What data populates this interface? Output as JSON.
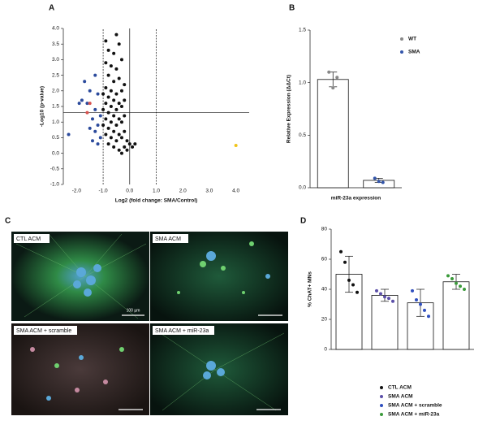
{
  "chart_data": [
    {
      "type": "scatter",
      "panel": "A",
      "x_label": "Log2 (fold change: SMA/Control)",
      "y_label": "-Log10 (p-value)",
      "xlim": [
        -2.5,
        4.5
      ],
      "ylim": [
        -1.0,
        4.0
      ],
      "xticks": [
        {
          "value": -2,
          "label": "-2.0"
        },
        {
          "value": -1,
          "label": "-1.0"
        },
        {
          "value": 0,
          "label": "0.0"
        },
        {
          "value": 1,
          "label": "1.0"
        },
        {
          "value": 2,
          "label": "2.0"
        },
        {
          "value": 3,
          "label": "3.0"
        },
        {
          "value": 4,
          "label": "4.0"
        }
      ],
      "yticks": [
        {
          "value": -1,
          "label": "-1.0"
        },
        {
          "value": -0.5,
          "label": "-0.5"
        },
        {
          "value": 0,
          "label": "0.0"
        },
        {
          "value": 0.5,
          "label": "0.5"
        },
        {
          "value": 1,
          "label": "1.0"
        },
        {
          "value": 1.5,
          "label": "1.5"
        },
        {
          "value": 2,
          "label": "2.0"
        },
        {
          "value": 2.5,
          "label": "2.5"
        },
        {
          "value": 3,
          "label": "3.0"
        },
        {
          "value": 3.5,
          "label": "3.5"
        },
        {
          "value": 4,
          "label": "4.0"
        }
      ],
      "ref_lines": [
        {
          "axis": "x",
          "value": -1,
          "style": "dashed"
        },
        {
          "axis": "x",
          "value": 0,
          "style": "solid"
        },
        {
          "axis": "x",
          "value": 1,
          "style": "dashed"
        },
        {
          "axis": "y",
          "value": 1.3,
          "style": "solid"
        }
      ],
      "series": [
        {
          "color": "#111111",
          "x": [
            -0.5,
            -0.9,
            -0.4,
            -0.8,
            -0.6,
            -0.3,
            -0.9,
            -0.7,
            -0.5,
            -0.8,
            -0.4,
            -0.6,
            -0.2,
            -0.9,
            -0.7,
            -0.3,
            -1.0,
            -0.5,
            -0.8,
            -0.6,
            -0.2,
            -0.9,
            -0.4,
            -0.7,
            -0.3,
            -1.0,
            -0.5,
            -0.8,
            -0.6,
            -0.2,
            -0.9,
            -0.4,
            -0.7,
            -0.3,
            -1.0,
            -0.5,
            -0.8,
            -0.6,
            -0.2,
            -0.9,
            -0.4,
            -0.7,
            -0.3,
            -0.1,
            -0.5,
            0.0,
            -0.8,
            -0.6,
            -0.2,
            0.2,
            -0.4,
            -0.1,
            0.1,
            -0.3
          ],
          "y": [
            3.8,
            3.6,
            3.5,
            3.3,
            3.2,
            3.0,
            2.9,
            2.8,
            2.7,
            2.5,
            2.4,
            2.3,
            2.2,
            2.1,
            2.0,
            2.0,
            1.9,
            1.9,
            1.8,
            1.7,
            1.7,
            1.6,
            1.6,
            1.5,
            1.5,
            1.4,
            1.4,
            1.3,
            1.2,
            1.2,
            1.1,
            1.1,
            1.0,
            1.0,
            0.9,
            0.9,
            0.8,
            0.7,
            0.7,
            0.6,
            0.6,
            0.5,
            0.5,
            0.4,
            0.4,
            0.3,
            0.3,
            0.2,
            0.2,
            0.3,
            0.1,
            0.1,
            0.2,
            0.0
          ]
        },
        {
          "color": "#2b4a9c",
          "x": [
            -1.7,
            -1.3,
            -1.5,
            -1.2,
            -1.8,
            -1.6,
            -1.3,
            -1.1,
            -1.4,
            -1.2,
            -1.5,
            -1.3,
            -2.3,
            -1.1,
            -1.4,
            -1.2,
            -1.9
          ],
          "y": [
            2.3,
            2.5,
            2.0,
            1.9,
            1.7,
            1.6,
            1.4,
            1.2,
            1.1,
            0.9,
            0.8,
            0.7,
            0.6,
            0.5,
            0.4,
            0.3,
            1.6
          ]
        },
        {
          "color": "#d9534f",
          "x": [
            -1.5,
            -1.6
          ],
          "y": [
            1.6,
            1.3
          ]
        },
        {
          "color": "#f0c419",
          "x": [
            4.0
          ],
          "y": [
            0.25
          ]
        }
      ]
    },
    {
      "type": "bar",
      "panel": "B",
      "x_label": "miR-23a expression",
      "y_label": "Relative Expression (ΔΔCt)",
      "categories": [
        null
      ],
      "ylim": [
        0,
        1.5
      ],
      "yticks": [
        {
          "value": 0,
          "label": "0.0"
        },
        {
          "value": 0.5,
          "label": "0.5"
        },
        {
          "value": 1,
          "label": "1.0"
        },
        {
          "value": 1.5,
          "label": "1.5"
        }
      ],
      "series": [
        {
          "name": "WT",
          "color": "#888888",
          "values": [
            1.03
          ],
          "errors": [
            0.07
          ],
          "points": [
            1.1,
            0.95,
            1.05
          ]
        },
        {
          "name": "SMA",
          "color": "#3355aa",
          "values": [
            0.07
          ],
          "errors": [
            0.02
          ],
          "points": [
            0.09,
            0.06,
            0.05
          ]
        }
      ]
    },
    {
      "type": "bar",
      "panel": "D",
      "y_label": "% ChAT+ MNs",
      "categories": [
        null
      ],
      "ylim": [
        0,
        80
      ],
      "yticks": [
        0,
        20,
        40,
        60,
        80
      ],
      "series": [
        {
          "name": "CTL ACM",
          "color": "#111111",
          "values": [
            50
          ],
          "errors": [
            12
          ],
          "points": [
            65,
            58,
            46,
            43,
            38
          ]
        },
        {
          "name": "SMA ACM",
          "color": "#5b4fa8",
          "values": [
            36
          ],
          "errors": [
            4
          ],
          "points": [
            39,
            37,
            35,
            34,
            32
          ]
        },
        {
          "name": "SMA ACM + scramble",
          "color": "#2f4fbf",
          "values": [
            31
          ],
          "errors": [
            9
          ],
          "points": [
            39,
            33,
            30,
            26,
            22
          ]
        },
        {
          "name": "SMA ACM + miR-23a",
          "color": "#3a9a3a",
          "values": [
            45
          ],
          "errors": [
            5
          ],
          "points": [
            49,
            47,
            44,
            42,
            40
          ]
        }
      ]
    }
  ],
  "micrographs": {
    "panel": "C",
    "labels": [
      "CTL ACM",
      "SMA ACM",
      "SMA ACM + scramble",
      "SMA ACM + miR-23a"
    ],
    "scale_bar": "100 µm"
  }
}
